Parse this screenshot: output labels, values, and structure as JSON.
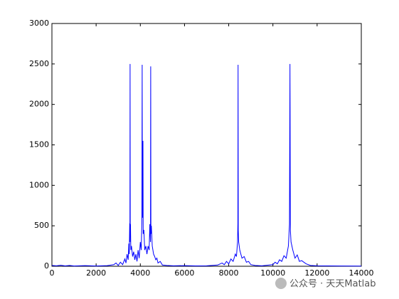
{
  "chart_data": {
    "type": "line",
    "x": [
      0,
      200,
      400,
      600,
      800,
      1000,
      1500,
      2000,
      2500,
      2800,
      2900,
      3000,
      3100,
      3200,
      3300,
      3350,
      3400,
      3450,
      3480,
      3500,
      3520,
      3530,
      3537,
      3545,
      3555,
      3570,
      3600,
      3650,
      3700,
      3750,
      3800,
      3850,
      3900,
      3950,
      4000,
      4040,
      4070,
      4084,
      4095,
      4110,
      4120,
      4130,
      4160,
      4200,
      4250,
      4300,
      4350,
      4400,
      4430,
      4460,
      4470,
      4480,
      4500,
      4540,
      4600,
      4650,
      4700,
      4750,
      4800,
      4900,
      5000,
      5200,
      5500,
      6000,
      6500,
      7000,
      7500,
      7700,
      7800,
      7900,
      8000,
      8100,
      8200,
      8300,
      8350,
      8400,
      8415,
      8424,
      8432,
      8450,
      8500,
      8550,
      8600,
      8700,
      8800,
      8900,
      9000,
      9200,
      9500,
      10000,
      10100,
      10200,
      10300,
      10400,
      10500,
      10600,
      10700,
      10750,
      10772,
      10790,
      10820,
      10900,
      11000,
      11100,
      11200,
      11300,
      11500,
      11700,
      12000,
      13000,
      14000
    ],
    "series": [
      {
        "color": "#0000ff",
        "values": [
          10,
          5,
          12,
          4,
          10,
          3,
          8,
          3,
          8,
          20,
          40,
          10,
          50,
          20,
          90,
          40,
          150,
          80,
          280,
          150,
          530,
          300,
          2500,
          400,
          520,
          200,
          250,
          120,
          180,
          80,
          150,
          60,
          200,
          100,
          300,
          200,
          530,
          2490,
          600,
          1300,
          1550,
          400,
          450,
          200,
          250,
          150,
          250,
          200,
          520,
          300,
          2470,
          400,
          500,
          250,
          150,
          120,
          80,
          100,
          40,
          60,
          15,
          10,
          5,
          8,
          4,
          6,
          15,
          40,
          20,
          60,
          30,
          90,
          60,
          150,
          120,
          300,
          530,
          2490,
          450,
          300,
          200,
          150,
          100,
          120,
          50,
          60,
          20,
          10,
          5,
          20,
          50,
          30,
          80,
          60,
          130,
          100,
          250,
          520,
          2500,
          450,
          300,
          200,
          100,
          140,
          60,
          70,
          30,
          10,
          5,
          3,
          2
        ]
      }
    ],
    "xlim": [
      0,
      14000
    ],
    "xticks": [
      0,
      2000,
      4000,
      6000,
      8000,
      10000,
      12000,
      14000
    ],
    "ylim": [
      0,
      3000
    ],
    "yticks": [
      0,
      500,
      1000,
      1500,
      2000,
      2500,
      3000
    ],
    "watermark": "公众号 · 天天Matlab"
  }
}
